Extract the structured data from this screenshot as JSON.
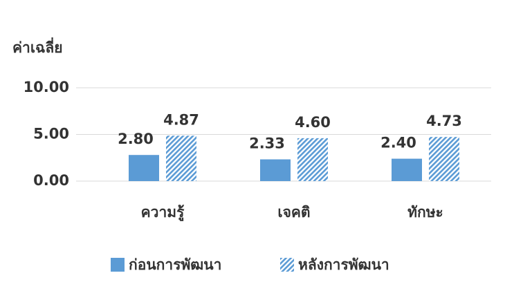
{
  "chart_data": {
    "type": "bar",
    "y_label": "ค่าเฉลี่ย",
    "categories": [
      "ความรู้",
      "เจคติ",
      "ทักษะ"
    ],
    "series": [
      {
        "name": "ก่อนการพัฒนา",
        "color": "#5b9bd5",
        "fill": "solid",
        "values": [
          2.8,
          2.33,
          2.4
        ],
        "value_labels": [
          "2.80",
          "2.33",
          "2.40"
        ]
      },
      {
        "name": "หลังการพัฒนา",
        "color": "#5b9bd5",
        "fill": "hatch",
        "values": [
          4.87,
          4.6,
          4.73
        ],
        "value_labels": [
          "4.87",
          "4.60",
          "4.73"
        ]
      }
    ],
    "ylim": [
      0,
      10
    ],
    "yticks": [
      {
        "value": 0,
        "label": "0.00"
      },
      {
        "value": 5,
        "label": "5.00"
      },
      {
        "value": 10,
        "label": "10.00"
      }
    ],
    "grid": true,
    "legend": "bottom"
  }
}
